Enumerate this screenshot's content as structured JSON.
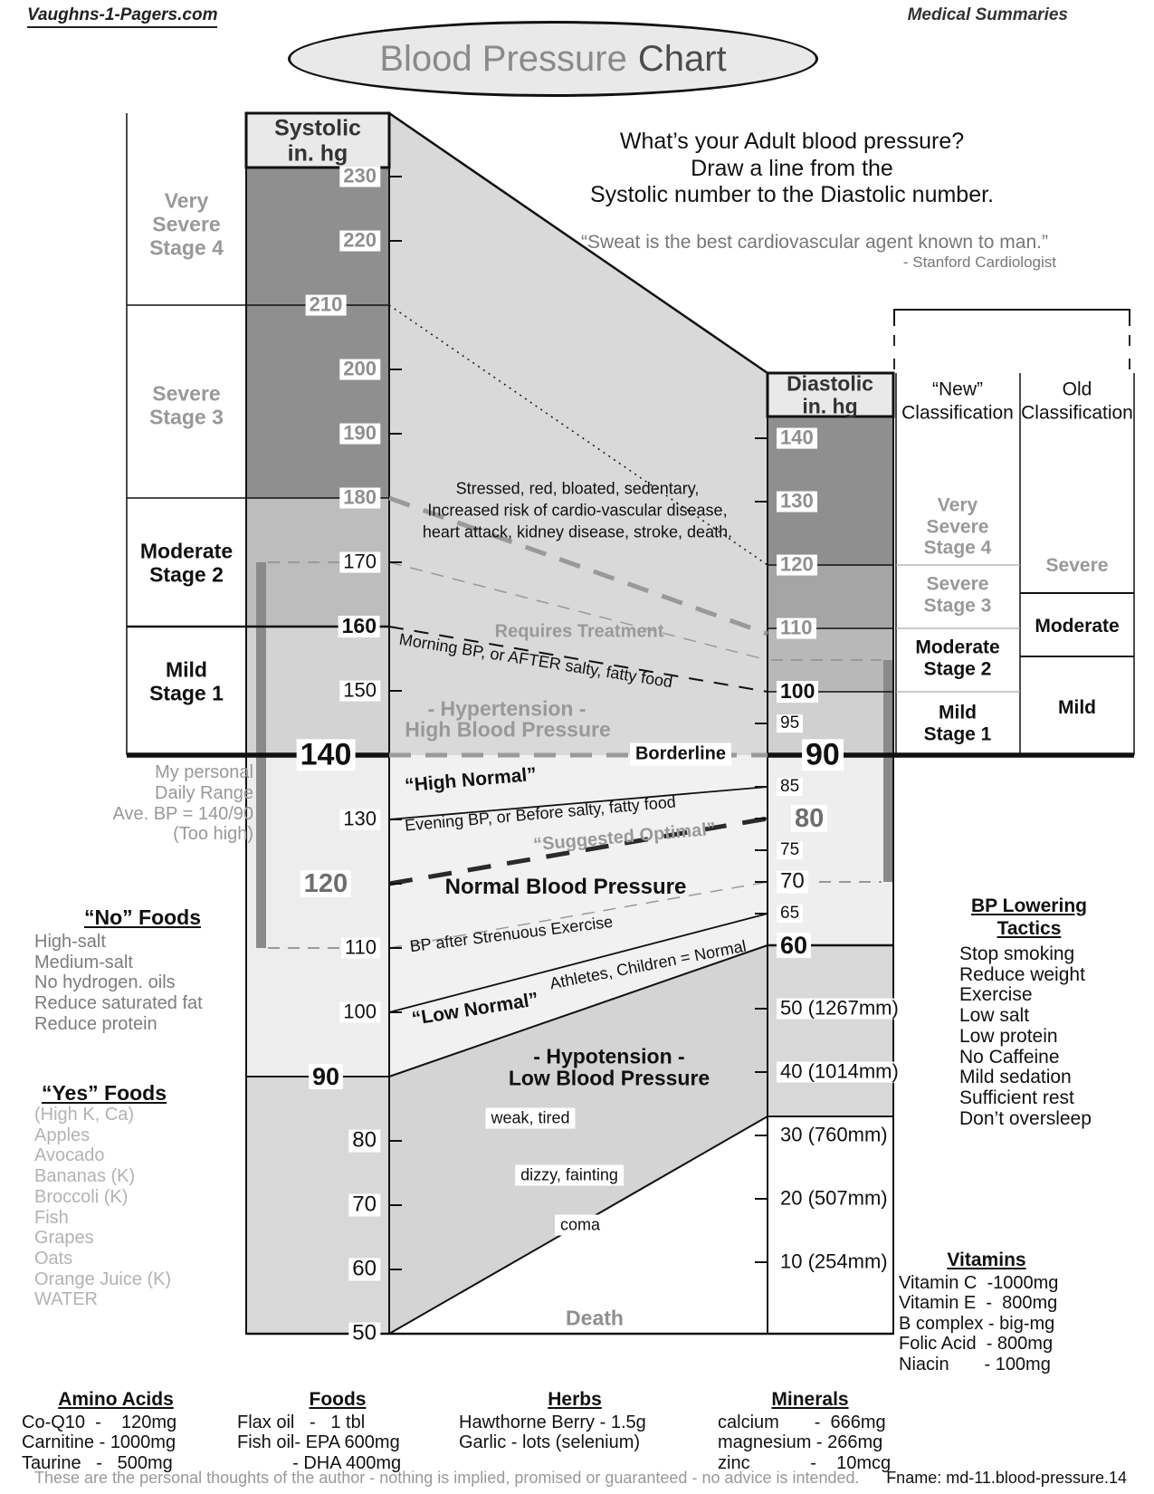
{
  "page": {
    "brand": "Vaughns-1-Pagers.com",
    "category": "Medical Summaries",
    "title_main": "Blood Pressure",
    "title_accent": "Chart"
  },
  "intro": {
    "line1": "What’s your Adult blood pressure?",
    "line2": "Draw a line from the",
    "line3": "Systolic number to the Diastolic number.",
    "quote": "“Sweat is the best cardiovascular agent known to man.”",
    "quote_attribution": "- Stanford Cardiologist"
  },
  "chart": {
    "systolic": {
      "header": [
        "Systolic",
        "in. hg"
      ],
      "ticks": [
        {
          "value": 230,
          "label": "230"
        },
        {
          "value": 220,
          "label": "220"
        },
        {
          "value": 210,
          "label": "210"
        },
        {
          "value": 200,
          "label": "200"
        },
        {
          "value": 190,
          "label": "190"
        },
        {
          "value": 180,
          "label": "180"
        },
        {
          "value": 170,
          "label": "170"
        },
        {
          "value": 160,
          "label": "160"
        },
        {
          "value": 150,
          "label": "150"
        },
        {
          "value": 140,
          "label": "140"
        },
        {
          "value": 130,
          "label": "130"
        },
        {
          "value": 120,
          "label": "120"
        },
        {
          "value": 110,
          "label": "110"
        },
        {
          "value": 100,
          "label": "100"
        },
        {
          "value": 90,
          "label": "90"
        },
        {
          "value": 80,
          "label": "80"
        },
        {
          "value": 70,
          "label": "70"
        },
        {
          "value": 60,
          "label": "60"
        },
        {
          "value": 50,
          "label": "50"
        }
      ],
      "stages": [
        {
          "id": "stage4",
          "lines": [
            "Very",
            "Severe",
            "Stage 4"
          ],
          "tone": "gray"
        },
        {
          "id": "stage3",
          "lines": [
            "Severe",
            "Stage 3"
          ],
          "tone": "gray"
        },
        {
          "id": "stage2",
          "lines": [
            "Moderate",
            "Stage 2"
          ],
          "tone": "black"
        },
        {
          "id": "stage1",
          "lines": [
            "Mild",
            "Stage 1"
          ],
          "tone": "black"
        }
      ]
    },
    "diastolic": {
      "header": [
        "Diastolic",
        "in. hg"
      ],
      "ticks": [
        {
          "value": 140,
          "label": "140"
        },
        {
          "value": 130,
          "label": "130"
        },
        {
          "value": 120,
          "label": "120"
        },
        {
          "value": 110,
          "label": "110"
        },
        {
          "value": 100,
          "label": "100"
        },
        {
          "value": 95,
          "label": "95"
        },
        {
          "value": 90,
          "label": "90"
        },
        {
          "value": 85,
          "label": "85"
        },
        {
          "value": 80,
          "label": "80"
        },
        {
          "value": 75,
          "label": "75"
        },
        {
          "value": 70,
          "label": "70"
        },
        {
          "value": 65,
          "label": "65"
        },
        {
          "value": 60,
          "label": "60"
        },
        {
          "value": 50,
          "label": "50 (1267mm)"
        },
        {
          "value": 40,
          "label": "40 (1014mm)"
        },
        {
          "value": 30,
          "label": "30 (760mm)"
        },
        {
          "value": 20,
          "label": "20 (507mm)"
        },
        {
          "value": 10,
          "label": "10 (254mm)"
        }
      ]
    },
    "classification": {
      "new": {
        "header": [
          "“New”",
          "Classification"
        ],
        "zones": [
          {
            "id": "new-stage4",
            "lines": [
              "Very",
              "Severe",
              "Stage 4"
            ],
            "tone": "gray"
          },
          {
            "id": "new-stage3",
            "lines": [
              "Severe",
              "Stage 3"
            ],
            "tone": "gray"
          },
          {
            "id": "new-stage2",
            "lines": [
              "Moderate",
              "Stage 2"
            ],
            "tone": "black"
          },
          {
            "id": "new-stage1",
            "lines": [
              "Mild",
              "Stage 1"
            ],
            "tone": "black"
          }
        ]
      },
      "old": {
        "header": [
          "Old",
          "Classification"
        ],
        "zones": [
          {
            "id": "old-severe",
            "lines": [
              "Severe"
            ],
            "tone": "gray"
          },
          {
            "id": "old-moderate",
            "lines": [
              "Moderate"
            ],
            "tone": "black"
          },
          {
            "id": "old-mild",
            "lines": [
              "Mild"
            ],
            "tone": "black"
          }
        ]
      }
    },
    "personal_range": [
      "My personal",
      "Daily Range",
      "Ave. BP = 140/90",
      "(Too high)"
    ],
    "annotations": {
      "disease_1": "Stressed, red, bloated, sedentary,",
      "disease_2": "Increased risk of cardio-vascular disease,",
      "disease_3": "heart attack, kidney disease, stroke, death.",
      "requires_treatment": "Requires Treatment",
      "morning_bp": "Morning BP, or AFTER salty, fatty food",
      "hypertension_1": "- Hypertension -",
      "hypertension_2": "High  Blood  Pressure",
      "borderline": "Borderline",
      "high_normal": "“High Normal”",
      "evening_bp": "Evening BP, or Before salty, fatty food",
      "suggested_optimal": "“Suggested Optimal”",
      "normal_bp": "Normal Blood Pressure",
      "bp_exercise": "BP after Strenuous Exercise",
      "low_normal": "“Low Normal”",
      "athletes": "Athletes, Children = Normal",
      "hypotension_1": "- Hypotension -",
      "hypotension_2": "Low  Blood  Pressure",
      "weak": "weak, tired",
      "dizzy": "dizzy, fainting",
      "coma": "coma",
      "death": "Death"
    }
  },
  "lists": {
    "no_foods": {
      "title": "“No” Foods",
      "items": [
        "High-salt",
        "Medium-salt",
        "No hydrogen. oils",
        "Reduce saturated fat",
        "Reduce protein"
      ]
    },
    "yes_foods": {
      "title": "“Yes” Foods",
      "items": [
        "(High K, Ca)",
        "Apples",
        "Avocado",
        "Bananas (K)",
        "Broccoli (K)",
        "Fish",
        "Grapes",
        "Oats",
        "Orange Juice (K)",
        "WATER"
      ]
    },
    "tactics": {
      "title_line1": "BP Lowering",
      "title_line2": "Tactics",
      "items": [
        "Stop smoking",
        "Reduce weight",
        "Exercise",
        "Low salt",
        "Low protein",
        "No Caffeine",
        "Mild sedation",
        "Sufficient rest",
        "Don’t oversleep"
      ]
    }
  },
  "supplements": [
    {
      "title": "Amino Acids",
      "items": [
        "Co-Q10  -    120mg",
        "Carnitine - 1000mg",
        "Taurine   -   500mg"
      ]
    },
    {
      "title": "Foods",
      "items": [
        "Flax oil   -   1 tbl",
        "Fish oil- EPA 600mg",
        "           - DHA 400mg"
      ]
    },
    {
      "title": "Herbs",
      "items": [
        "Hawthorne Berry - 1.5g",
        "Garlic - lots (selenium)"
      ]
    },
    {
      "title": "Minerals",
      "items": [
        "calcium       -  666mg",
        "magnesium - 266mg",
        "zinc            -    10mcg"
      ]
    },
    {
      "title": "Vitamins",
      "items": [
        "Vitamin C  -1000mg",
        "Vitamin E  -  800mg",
        "B complex - big-mg",
        "Folic Acid  - 800mg",
        "Niacin       - 100mg"
      ]
    }
  ],
  "footer": {
    "disclaimer": "These are the personal thoughts of the author - nothing is implied, promised or guaranteed - no advice is intended.",
    "fname": "Fname: md-11.blood-pressure.14"
  }
}
